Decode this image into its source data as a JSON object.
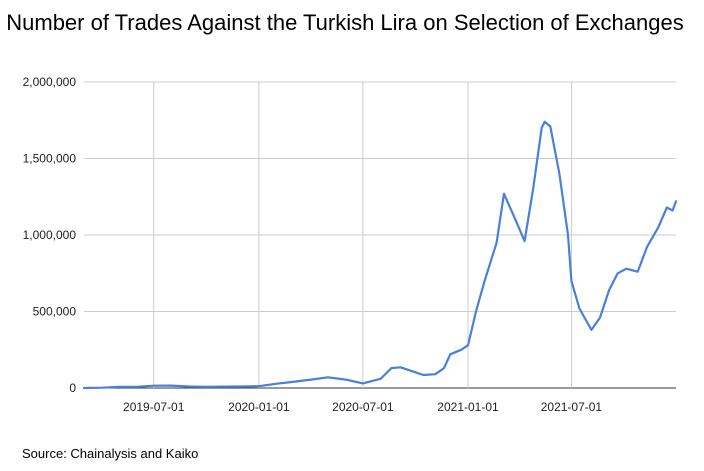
{
  "chart_data": {
    "type": "line",
    "title": "Number of Trades Against the Turkish Lira on Selection of Exchanges",
    "xlabel": "",
    "ylabel": "",
    "x_range": [
      "2019-03-01",
      "2021-12-31"
    ],
    "ylim": [
      0,
      2000000
    ],
    "y_ticks": [
      {
        "value": 0,
        "label": "0"
      },
      {
        "value": 500000,
        "label": "500,000"
      },
      {
        "value": 1000000,
        "label": "1,000,000"
      },
      {
        "value": 1500000,
        "label": "1,500,000"
      },
      {
        "value": 2000000,
        "label": "2,000,000"
      }
    ],
    "x_ticks": [
      {
        "date": "2019-07-01",
        "label": "2019-07-01"
      },
      {
        "date": "2020-01-01",
        "label": "2020-01-01"
      },
      {
        "date": "2020-07-01",
        "label": "2020-07-01"
      },
      {
        "date": "2021-01-01",
        "label": "2021-01-01"
      },
      {
        "date": "2021-07-01",
        "label": "2021-07-01"
      }
    ],
    "grid": true,
    "series": [
      {
        "color": "#4a7fdb",
        "points": [
          [
            "2019-03-01",
            0
          ],
          [
            "2019-04-01",
            2000
          ],
          [
            "2019-05-01",
            8000
          ],
          [
            "2019-06-01",
            8000
          ],
          [
            "2019-07-01",
            15000
          ],
          [
            "2019-08-01",
            16000
          ],
          [
            "2019-09-01",
            10000
          ],
          [
            "2019-10-01",
            8000
          ],
          [
            "2019-11-01",
            9000
          ],
          [
            "2019-12-01",
            10000
          ],
          [
            "2020-01-01",
            12000
          ],
          [
            "2020-02-01",
            28000
          ],
          [
            "2020-03-01",
            40000
          ],
          [
            "2020-04-01",
            55000
          ],
          [
            "2020-05-01",
            70000
          ],
          [
            "2020-06-01",
            55000
          ],
          [
            "2020-07-01",
            30000
          ],
          [
            "2020-08-01",
            60000
          ],
          [
            "2020-08-20",
            130000
          ],
          [
            "2020-09-05",
            135000
          ],
          [
            "2020-09-25",
            110000
          ],
          [
            "2020-10-15",
            85000
          ],
          [
            "2020-11-05",
            90000
          ],
          [
            "2020-11-20",
            130000
          ],
          [
            "2020-12-01",
            220000
          ],
          [
            "2020-12-20",
            250000
          ],
          [
            "2021-01-01",
            280000
          ],
          [
            "2021-01-15",
            500000
          ],
          [
            "2021-01-30",
            700000
          ],
          [
            "2021-02-20",
            950000
          ],
          [
            "2021-03-05",
            1270000
          ],
          [
            "2021-03-25",
            1100000
          ],
          [
            "2021-04-10",
            960000
          ],
          [
            "2021-04-25",
            1300000
          ],
          [
            "2021-05-10",
            1700000
          ],
          [
            "2021-05-15",
            1740000
          ],
          [
            "2021-05-25",
            1710000
          ],
          [
            "2021-06-10",
            1400000
          ],
          [
            "2021-06-25",
            1000000
          ],
          [
            "2021-07-01",
            700000
          ],
          [
            "2021-07-15",
            520000
          ],
          [
            "2021-08-05",
            380000
          ],
          [
            "2021-08-20",
            460000
          ],
          [
            "2021-09-05",
            640000
          ],
          [
            "2021-09-20",
            750000
          ],
          [
            "2021-10-05",
            780000
          ],
          [
            "2021-10-25",
            760000
          ],
          [
            "2021-11-10",
            920000
          ],
          [
            "2021-11-30",
            1050000
          ],
          [
            "2021-12-15",
            1180000
          ],
          [
            "2021-12-25",
            1160000
          ],
          [
            "2021-12-31",
            1220000
          ]
        ]
      }
    ]
  },
  "footer": {
    "source": "Source: Chainalysis and Kaiko"
  }
}
